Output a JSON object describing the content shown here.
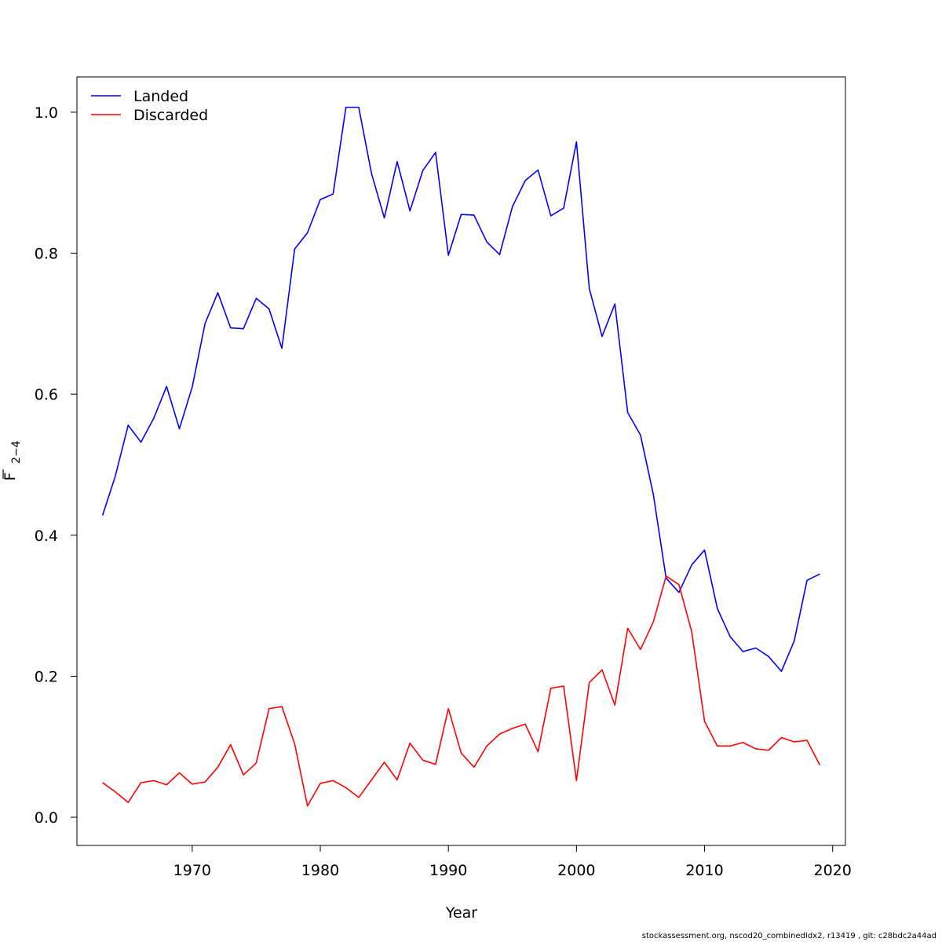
{
  "chart_data": {
    "type": "line",
    "xlabel": "Year",
    "ylabel": "F",
    "ylabel_sub": "2−4",
    "xlim": [
      1961,
      2021
    ],
    "ylim": [
      -0.04,
      1.05
    ],
    "xticks": [
      1970,
      1980,
      1990,
      2000,
      2010,
      2020
    ],
    "xtick_labels": [
      "1970",
      "1980",
      "1990",
      "2000",
      "2010",
      "2020"
    ],
    "yticks": [
      0.0,
      0.2,
      0.4,
      0.6,
      0.8,
      1.0
    ],
    "ytick_labels": [
      "0.0",
      "0.2",
      "0.4",
      "0.6",
      "0.8",
      "1.0"
    ],
    "legend_position": "top-left",
    "x": [
      1963,
      1964,
      1965,
      1966,
      1967,
      1968,
      1969,
      1970,
      1971,
      1972,
      1973,
      1974,
      1975,
      1976,
      1977,
      1978,
      1979,
      1980,
      1981,
      1982,
      1983,
      1984,
      1985,
      1986,
      1987,
      1988,
      1989,
      1990,
      1991,
      1992,
      1993,
      1994,
      1995,
      1996,
      1997,
      1998,
      1999,
      2000,
      2001,
      2002,
      2003,
      2004,
      2005,
      2006,
      2007,
      2008,
      2009,
      2010,
      2011,
      2012,
      2013,
      2014,
      2015,
      2016,
      2017,
      2018,
      2019
    ],
    "series": [
      {
        "name": "Landed",
        "color": "#0000ff",
        "values": [
          0.428,
          0.484,
          0.556,
          0.532,
          0.566,
          0.611,
          0.551,
          0.61,
          0.7,
          0.744,
          0.694,
          0.693,
          0.736,
          0.721,
          0.665,
          0.806,
          0.829,
          0.876,
          0.884,
          1.007,
          1.007,
          0.913,
          0.85,
          0.93,
          0.86,
          0.917,
          0.943,
          0.797,
          0.855,
          0.854,
          0.816,
          0.798,
          0.866,
          0.903,
          0.918,
          0.853,
          0.864,
          0.958,
          0.75,
          0.682,
          0.728,
          0.574,
          0.542,
          0.458,
          0.339,
          0.319,
          0.358,
          0.379,
          0.296,
          0.256,
          0.235,
          0.24,
          0.228,
          0.207,
          0.25,
          0.336,
          0.345
        ]
      },
      {
        "name": "Discarded",
        "color": "#ff0000",
        "values": [
          0.049,
          0.036,
          0.021,
          0.049,
          0.052,
          0.046,
          0.063,
          0.047,
          0.05,
          0.071,
          0.103,
          0.06,
          0.077,
          0.154,
          0.157,
          0.104,
          0.016,
          0.048,
          0.052,
          0.042,
          0.028,
          0.053,
          0.078,
          0.053,
          0.105,
          0.081,
          0.075,
          0.154,
          0.091,
          0.071,
          0.101,
          0.118,
          0.126,
          0.132,
          0.093,
          0.183,
          0.186,
          0.052,
          0.191,
          0.209,
          0.159,
          0.268,
          0.238,
          0.277,
          0.342,
          0.33,
          0.263,
          0.136,
          0.101,
          0.101,
          0.106,
          0.097,
          0.095,
          0.113,
          0.107,
          0.109,
          0.074
        ]
      }
    ]
  },
  "footer": "stockassessment.org, nscod20_combinedIdx2, r13419 , git: c28bdc2a44ad"
}
